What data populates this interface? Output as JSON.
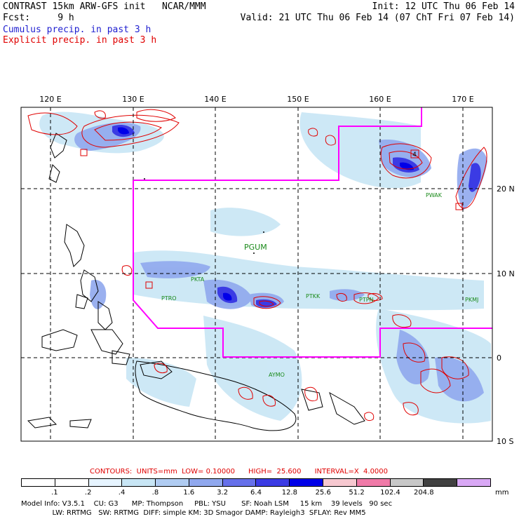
{
  "header": {
    "title_left": "CONTRAST 15km ARW-GFS init   NCAR/MMM",
    "init": "Init: 12 UTC Thu 06 Feb 14",
    "fcst_label": "Fcst:     9 h",
    "valid": "Valid: 21 UTC Thu 06 Feb 14 (07 ChT Fri 07 Feb 14)",
    "legend_cumulus": "Cumulus precip. in past 3 h",
    "legend_explicit": "Explicit precip. in past 3 h"
  },
  "colors": {
    "cumulus_text": "#1f1fd0",
    "explicit_text": "#e00000",
    "contour": "#e00000",
    "boundary": "#ff00ff",
    "station": "#1a8a1a",
    "contours_text": "#e00000"
  },
  "map": {
    "lon_ticks": [
      "120 E",
      "130 E",
      "140 E",
      "150 E",
      "160 E",
      "170 E"
    ],
    "lat_ticks": [
      "20 N",
      "10 N",
      "0",
      "10 S"
    ],
    "stations": [
      "PGUM",
      "PKTA",
      "PTRO",
      "PTKK",
      "PTPN",
      "PKMJ",
      "PWAK",
      "AYMO"
    ],
    "markers": [
      "4"
    ]
  },
  "contours": {
    "line": "CONTOURS:  UNITS=mm  LOW= 0.10000      HIGH=  25.600      INTERVAL=X  4.0000"
  },
  "colorbar": {
    "unit": "mm",
    "ticks": [
      ".1",
      ".2",
      ".4",
      ".8",
      "1.6",
      "3.2",
      "6.4",
      "12.8",
      "25.6",
      "51.2",
      "102.4",
      "204.8"
    ],
    "colors": [
      "#ffffff",
      "#ffffff",
      "#e6f4ff",
      "#c8e6f5",
      "#b0ccf2",
      "#90a8ee",
      "#6670ea",
      "#3b3be4",
      "#0000e8",
      "#f7c8d0",
      "#f07aa8",
      "#c8c8c8",
      "#404040",
      "#d9a8f5"
    ]
  },
  "footer": {
    "line1": "Model Info: V3.5.1    CU: G3      MP: Thompson     PBL: YSU       SF: Noah LSM     15 km    39 levels   90 sec",
    "line2": "              LW: RRTMG   SW: RRTMG  DIFF: simple KM: 3D Smagor DAMP: Rayleigh3  SFLAY: Rev MM5"
  }
}
